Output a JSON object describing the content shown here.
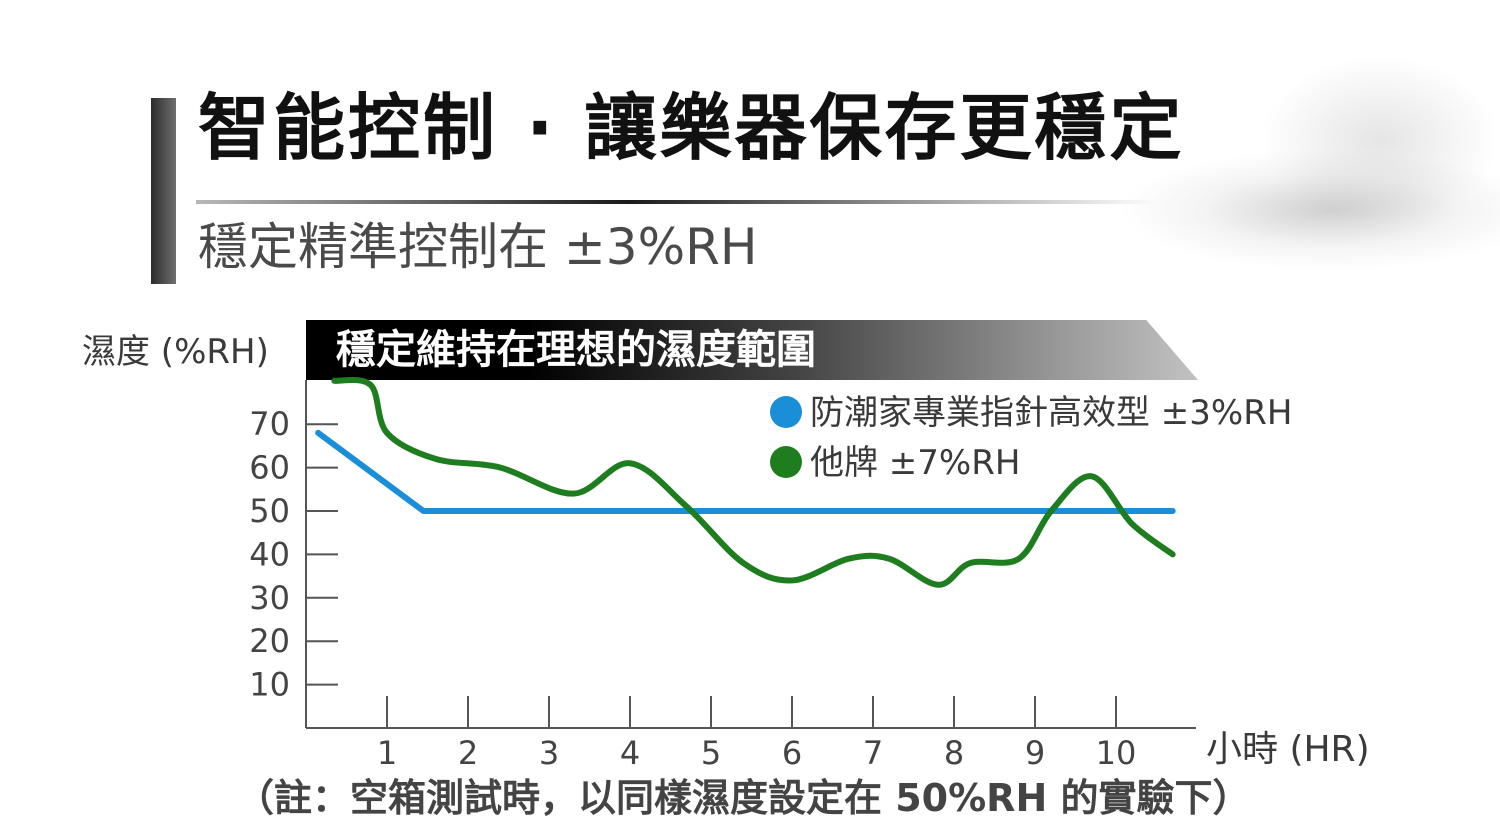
{
  "header": {
    "title": "智能控制 · 讓樂器保存更穩定",
    "subtitle": "穩定精準控制在 ±3%RH"
  },
  "note": "（註：空箱測試時，以同樣濕度設定在 50%RH 的實驗下）",
  "colors": {
    "series_blue": "#1a8fd8",
    "series_green": "#1e7d1e",
    "banner_dark": "#000000"
  },
  "chart_data": {
    "type": "line",
    "title": "穩定維持在理想的濕度範圍",
    "xlabel": "小時 (HR)",
    "ylabel": "濕度 (%RH)",
    "xlim": [
      0,
      11
    ],
    "ylim": [
      0,
      80
    ],
    "x_ticks": [
      "1",
      "2",
      "3",
      "4",
      "5",
      "6",
      "7",
      "8",
      "9",
      "10"
    ],
    "y_ticks": [
      "10",
      "20",
      "30",
      "40",
      "50",
      "60",
      "70"
    ],
    "legend_position": "top-right",
    "series": [
      {
        "name": "防潮家專業指針高效型 ±3%RH",
        "color": "#1a8fd8",
        "x": [
          0.15,
          1.45,
          10.7
        ],
        "y": [
          68,
          50,
          50
        ]
      },
      {
        "name": "他牌 ±7%RH",
        "color": "#1e7d1e",
        "x": [
          0.35,
          0.8,
          1.0,
          1.6,
          2.4,
          3.3,
          4.0,
          4.7,
          5.4,
          6.0,
          6.7,
          7.2,
          7.8,
          8.2,
          8.8,
          9.2,
          9.7,
          10.2,
          10.7
        ],
        "y": [
          80,
          79,
          68,
          62,
          60,
          54,
          61,
          51,
          38,
          34,
          39,
          39,
          33,
          38,
          39,
          50,
          58,
          47,
          40
        ]
      }
    ]
  }
}
